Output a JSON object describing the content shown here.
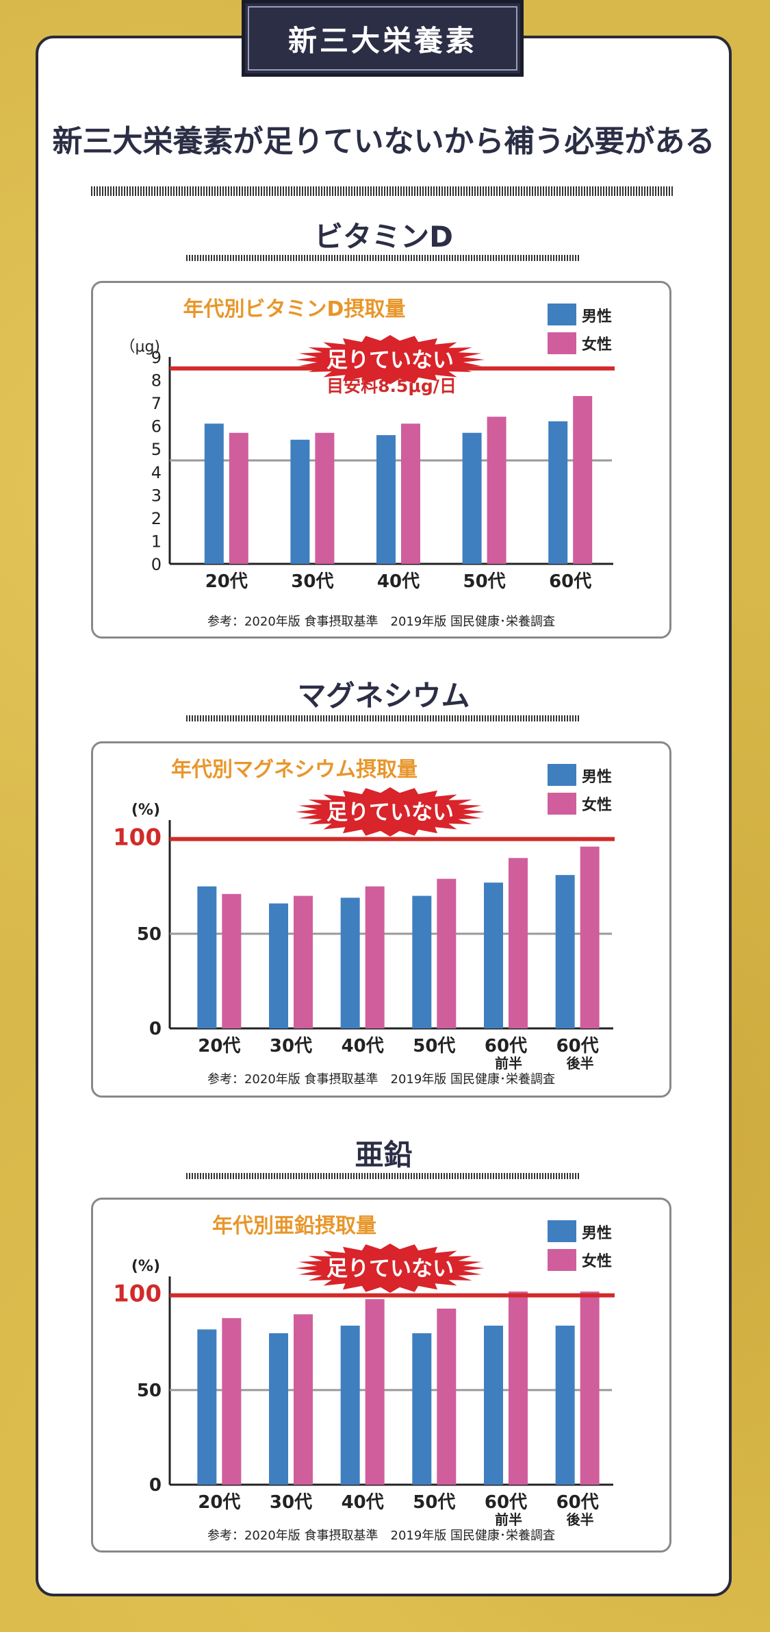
{
  "header": {
    "banner": "新三大栄養素",
    "headline": "新三大栄養素が足りていないから補う必要がある"
  },
  "legend": {
    "male": "男性",
    "female": "女性"
  },
  "colors": {
    "male": "#3f7fc0",
    "female": "#d05e9c",
    "accent": "#d22a2a",
    "title": "#e8962a",
    "gray": "#999999"
  },
  "badge": "足りていない",
  "source": "参考：2020年版 食事摂取基準　2019年版 国民健康･栄養調査",
  "sections": [
    {
      "heading": "ビタミンD"
    },
    {
      "heading": "マグネシウム"
    },
    {
      "heading": "亜鉛"
    }
  ],
  "chart_data": [
    {
      "type": "bar",
      "title": "年代別ビタミンD摂取量",
      "unit_label": "（μg)",
      "categories": [
        "20代",
        "30代",
        "40代",
        "50代",
        "60代"
      ],
      "series": [
        {
          "name": "男性",
          "values": [
            6.1,
            5.4,
            5.6,
            5.7,
            6.2
          ]
        },
        {
          "name": "女性",
          "values": [
            5.7,
            5.7,
            6.1,
            6.4,
            7.3
          ]
        }
      ],
      "ylim": [
        0,
        9
      ],
      "yticks": [
        "0",
        "1",
        "2",
        "3",
        "4",
        "5",
        "6",
        "7",
        "8",
        "9"
      ],
      "reference_line": {
        "value": 8.5,
        "label": "目安料8.5μg/日"
      },
      "gray_line": 4.5
    },
    {
      "type": "bar",
      "title": "年代別マグネシウム摂取量",
      "unit_label": "(%)",
      "categories": [
        "20代",
        "30代",
        "40代",
        "50代",
        "60代",
        "60代"
      ],
      "category_sub": [
        "",
        "",
        "",
        "",
        "前半",
        "後半"
      ],
      "series": [
        {
          "name": "男性",
          "values": [
            75,
            66,
            69,
            70,
            77,
            81
          ]
        },
        {
          "name": "女性",
          "values": [
            71,
            70,
            75,
            79,
            90,
            96
          ]
        }
      ],
      "ylim": [
        0,
        110
      ],
      "yticks": [
        "0",
        "50",
        "100"
      ],
      "reference_line": {
        "value": 100,
        "label": ""
      },
      "gray_line": 50
    },
    {
      "type": "bar",
      "title": "年代別亜鉛摂取量",
      "unit_label": "(%)",
      "categories": [
        "20代",
        "30代",
        "40代",
        "50代",
        "60代",
        "60代"
      ],
      "category_sub": [
        "",
        "",
        "",
        "",
        "前半",
        "後半"
      ],
      "series": [
        {
          "name": "男性",
          "values": [
            82,
            80,
            84,
            80,
            84,
            84
          ]
        },
        {
          "name": "女性",
          "values": [
            88,
            90,
            98,
            93,
            102,
            102
          ]
        }
      ],
      "ylim": [
        0,
        110
      ],
      "yticks": [
        "0",
        "50",
        "100"
      ],
      "reference_line": {
        "value": 100,
        "label": ""
      },
      "gray_line": 50
    }
  ]
}
